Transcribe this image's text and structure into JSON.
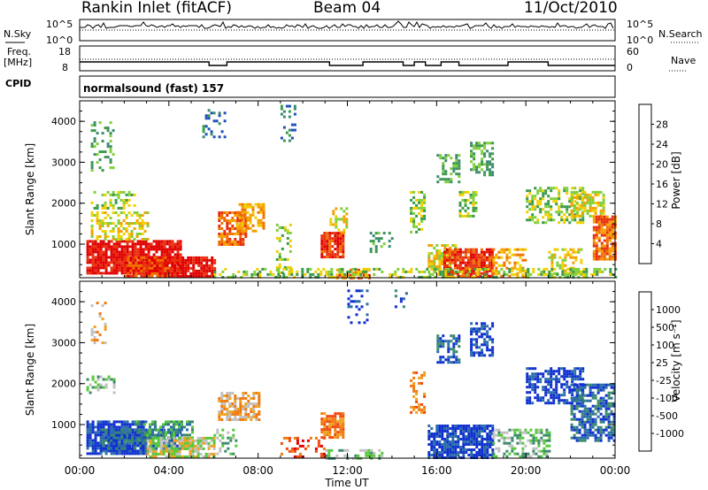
{
  "header": {
    "station": "Rankin Inlet (fitACF)",
    "beam": "Beam 04",
    "date": "11/Oct/2010"
  },
  "status_panel": {
    "nsky_label": "N.Sky",
    "nsearch_label": "N.Search",
    "noise_ticks_left": [
      "10^5",
      "10^0"
    ],
    "noise_ticks_right": [
      "10^5",
      "10^0"
    ],
    "freq_label_line1": "Freq.",
    "freq_label_line2": "[MHz]",
    "freq_ticks": [
      "18",
      "8"
    ],
    "nave_label": "Nave",
    "nave_ticks": [
      "60",
      "0"
    ],
    "cpid_label": "CPID",
    "cpid_text": "normalsound (fast) 157"
  },
  "chart_data": [
    {
      "type": "heatmap",
      "panel": "power",
      "ylabel": "Slant Range [km]",
      "ylim": [
        180,
        4500
      ],
      "yticks": [
        1000,
        2000,
        3000,
        4000
      ],
      "xlim_hours": [
        0,
        24
      ],
      "color_label": "Power [dB]",
      "color_ticks": [
        "4",
        "8",
        "12",
        "16",
        "20",
        "24",
        "28"
      ],
      "color_levels": [
        "#0033ff",
        "#1f4fb8",
        "#3d8a6e",
        "#3a9a4a",
        "#7fcf3a",
        "#f0d000",
        "#f5a000",
        "#f07000",
        "#e83010",
        "#e00000"
      ],
      "scatter_regions": [
        [
          0.3,
          4.5,
          300,
          1100,
          1.0,
          9
        ],
        [
          0.5,
          3.0,
          1100,
          1800,
          0.6,
          5
        ],
        [
          3.5,
          6.0,
          200,
          700,
          1.0,
          9
        ],
        [
          2.0,
          4.0,
          200,
          700,
          1.0,
          8
        ],
        [
          0.5,
          2.5,
          1900,
          2300,
          0.5,
          4
        ],
        [
          0.5,
          1.5,
          2800,
          4000,
          0.3,
          3
        ],
        [
          6.2,
          7.5,
          1000,
          1800,
          0.9,
          7
        ],
        [
          7.0,
          8.3,
          1300,
          2000,
          0.8,
          6
        ],
        [
          8.8,
          9.5,
          300,
          1500,
          0.4,
          4
        ],
        [
          10.8,
          11.8,
          700,
          1300,
          1.0,
          8
        ],
        [
          11.2,
          12.0,
          1300,
          1900,
          0.5,
          5
        ],
        [
          11.5,
          13.0,
          200,
          400,
          0.8,
          7
        ],
        [
          13.0,
          14.0,
          800,
          1300,
          0.4,
          3
        ],
        [
          14.8,
          15.5,
          1300,
          2300,
          0.6,
          4
        ],
        [
          15.6,
          16.8,
          300,
          1000,
          0.8,
          5
        ],
        [
          16.3,
          18.5,
          200,
          900,
          1.0,
          8
        ],
        [
          16.0,
          17.0,
          2500,
          3200,
          0.5,
          3
        ],
        [
          17.5,
          18.5,
          2700,
          3500,
          0.6,
          3
        ],
        [
          17.0,
          17.8,
          1700,
          2300,
          0.6,
          4
        ],
        [
          18.5,
          20.0,
          200,
          900,
          0.6,
          6
        ],
        [
          20.0,
          22.5,
          1500,
          2400,
          0.6,
          4
        ],
        [
          22.0,
          23.5,
          1700,
          2300,
          0.8,
          5
        ],
        [
          23.0,
          24.0,
          600,
          1700,
          0.9,
          7
        ],
        [
          21.0,
          22.5,
          300,
          900,
          0.6,
          5
        ],
        [
          6.0,
          24.0,
          200,
          420,
          0.45,
          4
        ],
        [
          9.0,
          9.6,
          3500,
          4400,
          0.3,
          2
        ],
        [
          5.5,
          6.5,
          3600,
          4300,
          0.3,
          2
        ]
      ]
    },
    {
      "type": "heatmap",
      "panel": "velocity",
      "ylabel": "Slant Range [km]",
      "xlabel": "Time UT",
      "ylim": [
        180,
        4500
      ],
      "yticks": [
        1000,
        2000,
        3000,
        4000
      ],
      "xticks": [
        "00:00",
        "04:00",
        "08:00",
        "12:00",
        "16:00",
        "20:00",
        "00:00"
      ],
      "xlim_hours": [
        0,
        24
      ],
      "color_label": "Velocity [m s⁻¹]",
      "color_ticks": [
        "1000",
        "500",
        "100",
        "25",
        "-25",
        "-100",
        "-500",
        "-1000"
      ],
      "color_levels": [
        "#1030d0",
        "#2a6ea8",
        "#3a8a6a",
        "#55c83a",
        "#c0c0c0",
        "#f0a020",
        "#f07a10",
        "#f04a10",
        "#e00000"
      ],
      "scatter_regions": [
        [
          0.3,
          3.0,
          300,
          1100,
          1.0,
          0
        ],
        [
          1.0,
          4.5,
          400,
          900,
          0.9,
          1
        ],
        [
          2.5,
          5.0,
          600,
          1100,
          0.7,
          2
        ],
        [
          0.3,
          1.5,
          1800,
          2200,
          0.5,
          3
        ],
        [
          3.0,
          6.0,
          200,
          700,
          0.9,
          4
        ],
        [
          6.2,
          8.0,
          1100,
          1800,
          0.8,
          5
        ],
        [
          6.0,
          7.0,
          300,
          900,
          0.4,
          3
        ],
        [
          10.8,
          11.8,
          700,
          1300,
          0.9,
          6
        ],
        [
          11.0,
          13.5,
          200,
          400,
          0.6,
          3
        ],
        [
          14.8,
          15.5,
          1300,
          2300,
          0.5,
          6
        ],
        [
          15.6,
          18.5,
          200,
          1000,
          0.95,
          0
        ],
        [
          16.0,
          17.0,
          2500,
          3200,
          0.6,
          1
        ],
        [
          17.5,
          18.5,
          2700,
          3500,
          0.7,
          0
        ],
        [
          20.0,
          22.5,
          1500,
          2400,
          0.7,
          0
        ],
        [
          22.0,
          24.0,
          600,
          2000,
          0.8,
          1
        ],
        [
          18.5,
          21.0,
          200,
          900,
          0.6,
          3
        ],
        [
          9.0,
          11.0,
          200,
          700,
          0.4,
          7
        ],
        [
          12.0,
          13.0,
          3500,
          4300,
          0.2,
          0
        ],
        [
          14.0,
          14.6,
          3800,
          4300,
          0.2,
          1
        ],
        [
          0.5,
          1.2,
          3000,
          4000,
          0.3,
          5
        ]
      ]
    }
  ]
}
